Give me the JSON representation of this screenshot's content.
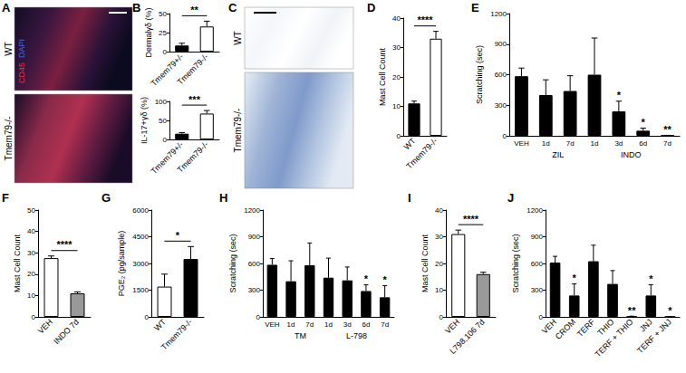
{
  "chart_data": [
    {
      "title": "A",
      "type": "image",
      "rows": [
        "WT",
        "Tmem79-/-"
      ],
      "stains": [
        {
          "name": "CD45",
          "color": "#e03a3a"
        },
        {
          "name": "DAPI",
          "color": "#4a6ae0"
        }
      ]
    },
    {
      "title": "B",
      "type": "bar",
      "categories": [
        "Tmem79+/-",
        "Tmem79-/-"
      ],
      "values": [
        8,
        33
      ],
      "errors": [
        3,
        7
      ],
      "colors": [
        "#000000",
        "#ffffff"
      ],
      "ylabel": "Dermalγδ (%)",
      "ylim": [
        0,
        50
      ],
      "yticks": [
        0,
        25,
        50
      ],
      "comparison": "**",
      "grid": false
    },
    {
      "type": "bar",
      "categories": [
        "Tmem79+/-",
        "Tmem79-/-"
      ],
      "values": [
        15,
        68
      ],
      "errors": [
        3,
        8
      ],
      "colors": [
        "#000000",
        "#ffffff"
      ],
      "ylabel": "IL-17+γδ (%)",
      "ylim": [
        0,
        100
      ],
      "yticks": [
        0,
        50,
        100
      ],
      "comparison": "***",
      "grid": false
    },
    {
      "title": "C",
      "type": "image",
      "rows": [
        "WT",
        "Tmem79-/-"
      ]
    },
    {
      "title": "D",
      "type": "bar",
      "categories": [
        "WT",
        "Tmem79-/-"
      ],
      "values": [
        11,
        33
      ],
      "errors": [
        0.8,
        2.5
      ],
      "colors": [
        "#000000",
        "#ffffff"
      ],
      "ylabel": "Mast Cell Count",
      "ylim": [
        0,
        40
      ],
      "yticks": [
        0,
        10,
        20,
        30,
        40
      ],
      "comparison": "****",
      "grid": false
    },
    {
      "title": "E",
      "type": "bar",
      "categories": [
        "VEH",
        "1d",
        "7d",
        "1d",
        "3d",
        "6d",
        "7d"
      ],
      "groups": [
        null,
        "ZIL",
        "ZIL",
        "INDO",
        "INDO",
        "INDO",
        "INDO"
      ],
      "values": [
        585,
        400,
        440,
        600,
        240,
        50,
        3
      ],
      "errors": [
        80,
        150,
        150,
        360,
        100,
        25,
        2
      ],
      "significance": [
        null,
        null,
        null,
        null,
        "*",
        "*",
        "**"
      ],
      "color": "#000000",
      "ylabel": "Scratching (sec)",
      "ylim": [
        0,
        1200
      ],
      "yticks": [
        0,
        300,
        600,
        900,
        1200
      ],
      "grid": false
    },
    {
      "title": "F",
      "type": "bar",
      "categories": [
        "VEH",
        "INDO 7d"
      ],
      "values": [
        27.5,
        11
      ],
      "errors": [
        1,
        0.7
      ],
      "colors": [
        "#ffffff",
        "#999999"
      ],
      "ylabel": "Mast Cell Count",
      "ylim": [
        0,
        50
      ],
      "yticks": [
        0,
        10,
        20,
        30,
        40,
        50
      ],
      "comparison": "****",
      "grid": false
    },
    {
      "title": "G",
      "type": "bar",
      "categories": [
        "WT",
        "Tmem79-/-"
      ],
      "values": [
        1700,
        3250
      ],
      "errors": [
        700,
        700
      ],
      "colors": [
        "#ffffff",
        "#000000"
      ],
      "ylabel": "PGE₂ (pg/sample)",
      "ylim": [
        0,
        6000
      ],
      "yticks": [
        0,
        1500,
        3000,
        4500,
        6000
      ],
      "comparison": "*",
      "grid": false
    },
    {
      "title": "H",
      "type": "bar",
      "categories": [
        "VEH",
        "1d",
        "7d",
        "1d",
        "3d",
        "6d",
        "7d"
      ],
      "groups": [
        null,
        "TM",
        "TM",
        "L-798",
        "L-798",
        "L-798",
        "L-798"
      ],
      "values": [
        585,
        400,
        580,
        440,
        410,
        290,
        220
      ],
      "errors": [
        70,
        230,
        250,
        220,
        150,
        70,
        130
      ],
      "significance": [
        null,
        null,
        null,
        null,
        null,
        "*",
        "*"
      ],
      "color": "#000000",
      "ylabel": "Scratching (sec)",
      "ylim": [
        0,
        1200
      ],
      "yticks": [
        0,
        300,
        600,
        900,
        1200
      ],
      "grid": false
    },
    {
      "title": "I",
      "type": "bar",
      "categories": [
        "VEH",
        "L798,106 7d"
      ],
      "values": [
        31,
        16
      ],
      "errors": [
        1.5,
        0.7
      ],
      "colors": [
        "#ffffff",
        "#999999"
      ],
      "ylabel": "Mast Cell Count",
      "ylim": [
        0,
        40
      ],
      "yticks": [
        0,
        10,
        20,
        30,
        40
      ],
      "comparison": "****",
      "grid": false
    },
    {
      "title": "J",
      "type": "bar",
      "categories": [
        "VEH",
        "CROM",
        "TERF",
        "THIO",
        "TERF + THIO",
        "JNJ",
        "TERF + JNJ"
      ],
      "values": [
        610,
        240,
        625,
        370,
        5,
        240,
        2
      ],
      "errors": [
        70,
        130,
        180,
        150,
        3,
        120,
        2
      ],
      "significance": [
        null,
        "*",
        null,
        null,
        "**",
        "*",
        "*"
      ],
      "color": "#000000",
      "ylabel": "Scratching (sec)",
      "ylim": [
        0,
        1200
      ],
      "yticks": [
        0,
        300,
        600,
        900,
        1200
      ],
      "grid": false
    }
  ]
}
